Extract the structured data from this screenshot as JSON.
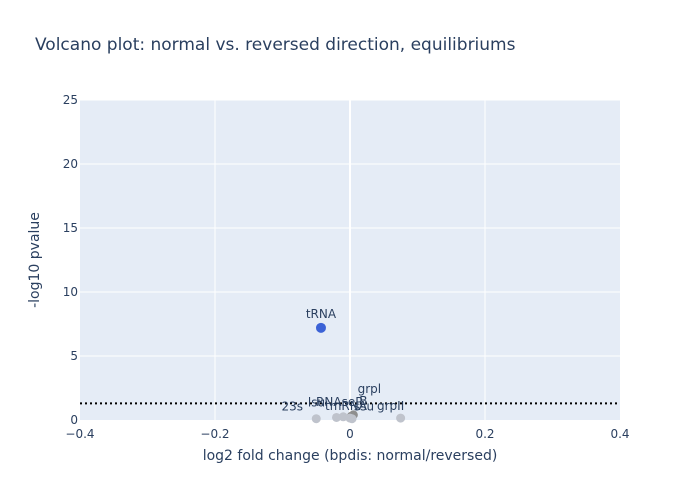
{
  "chart_data": {
    "type": "scatter",
    "title": "Volcano plot: normal vs. reversed direction, equilibriums",
    "xlabel": "log2 fold change (bpdis: normal/reversed)",
    "ylabel": "-log10 pvalue",
    "xlim": [
      -0.4,
      0.4
    ],
    "ylim": [
      0,
      25
    ],
    "x_ticks": [
      -0.4,
      -0.2,
      0,
      0.2,
      0.4
    ],
    "x_tick_labels": [
      "−0.4",
      "−0.2",
      "0",
      "0.2",
      "0.4"
    ],
    "y_ticks": [
      0,
      5,
      10,
      15,
      20,
      25
    ],
    "y_tick_labels": [
      "0",
      "5",
      "10",
      "15",
      "20",
      "25"
    ],
    "grid": true,
    "threshold_y": 1.3,
    "colors": {
      "plot_bg": "#e5ecf6",
      "grid": "#ffffff",
      "significant": "#3b62d6",
      "nonsignificant_light": "#bfc3cc",
      "nonsignificant_dark": "#8e8e8e",
      "threshold": "#000000",
      "text": "#2a3f5f"
    },
    "points": [
      {
        "label": "tRNA",
        "x": -0.043,
        "y": 7.2,
        "significant": true,
        "shade": "significant"
      },
      {
        "label": "grpl",
        "x": 0.005,
        "y": 0.4,
        "significant": false,
        "shade": "nonsignificant_dark"
      },
      {
        "label": "B",
        "x": 0.002,
        "y": 0.3,
        "significant": false,
        "shade": "nonsignificant_dark"
      },
      {
        "label": "RNAseP",
        "x": -0.01,
        "y": 0.25,
        "significant": false,
        "shade": "nonsignificant_light"
      },
      {
        "label": "lsu",
        "x": -0.02,
        "y": 0.2,
        "significant": false,
        "shade": "nonsignificant_light"
      },
      {
        "label": "tmRNA",
        "x": 0.0,
        "y": 0.15,
        "significant": false,
        "shade": "nonsignificant_light"
      },
      {
        "label": "23s",
        "x": -0.05,
        "y": 0.1,
        "significant": false,
        "shade": "nonsignificant_light"
      },
      {
        "label": "ssu",
        "x": 0.003,
        "y": 0.1,
        "significant": false,
        "shade": "nonsignificant_light"
      },
      {
        "label": "grpII",
        "x": 0.075,
        "y": 0.15,
        "significant": false,
        "shade": "nonsignificant_light"
      }
    ]
  }
}
